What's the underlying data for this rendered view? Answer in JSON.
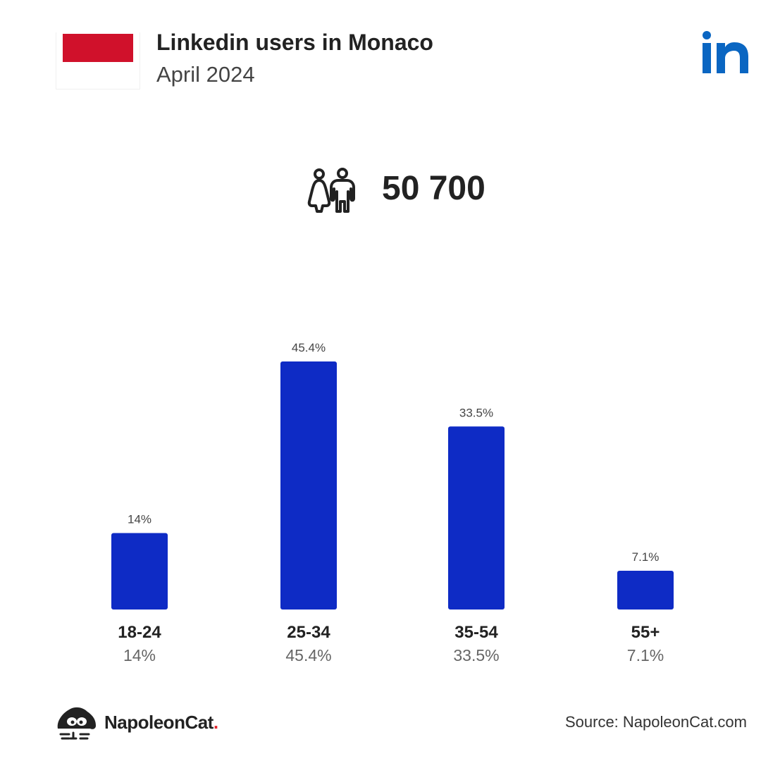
{
  "header": {
    "title": "Linkedin users in Monaco",
    "subtitle": "April 2024",
    "flag_color": "#d0112b",
    "logo_icon": "linkedin-logo-icon",
    "logo_color": "#0a66c2"
  },
  "total": {
    "icon": "users-icon",
    "value": "50 700"
  },
  "chart_data": {
    "type": "bar",
    "categories": [
      "18-24",
      "25-34",
      "35-54",
      "55+"
    ],
    "values": [
      14,
      45.4,
      33.5,
      7.1
    ],
    "data_labels": [
      "14%",
      "45.4%",
      "33.5%",
      "7.1%"
    ],
    "bar_color": "#0e2bc5",
    "ylim": [
      0,
      45.4
    ],
    "grid": false,
    "legend": "none"
  },
  "footer": {
    "brand_name": "NapoleonCat",
    "brand_dot": ".",
    "source": "Source: NapoleonCat.com"
  }
}
